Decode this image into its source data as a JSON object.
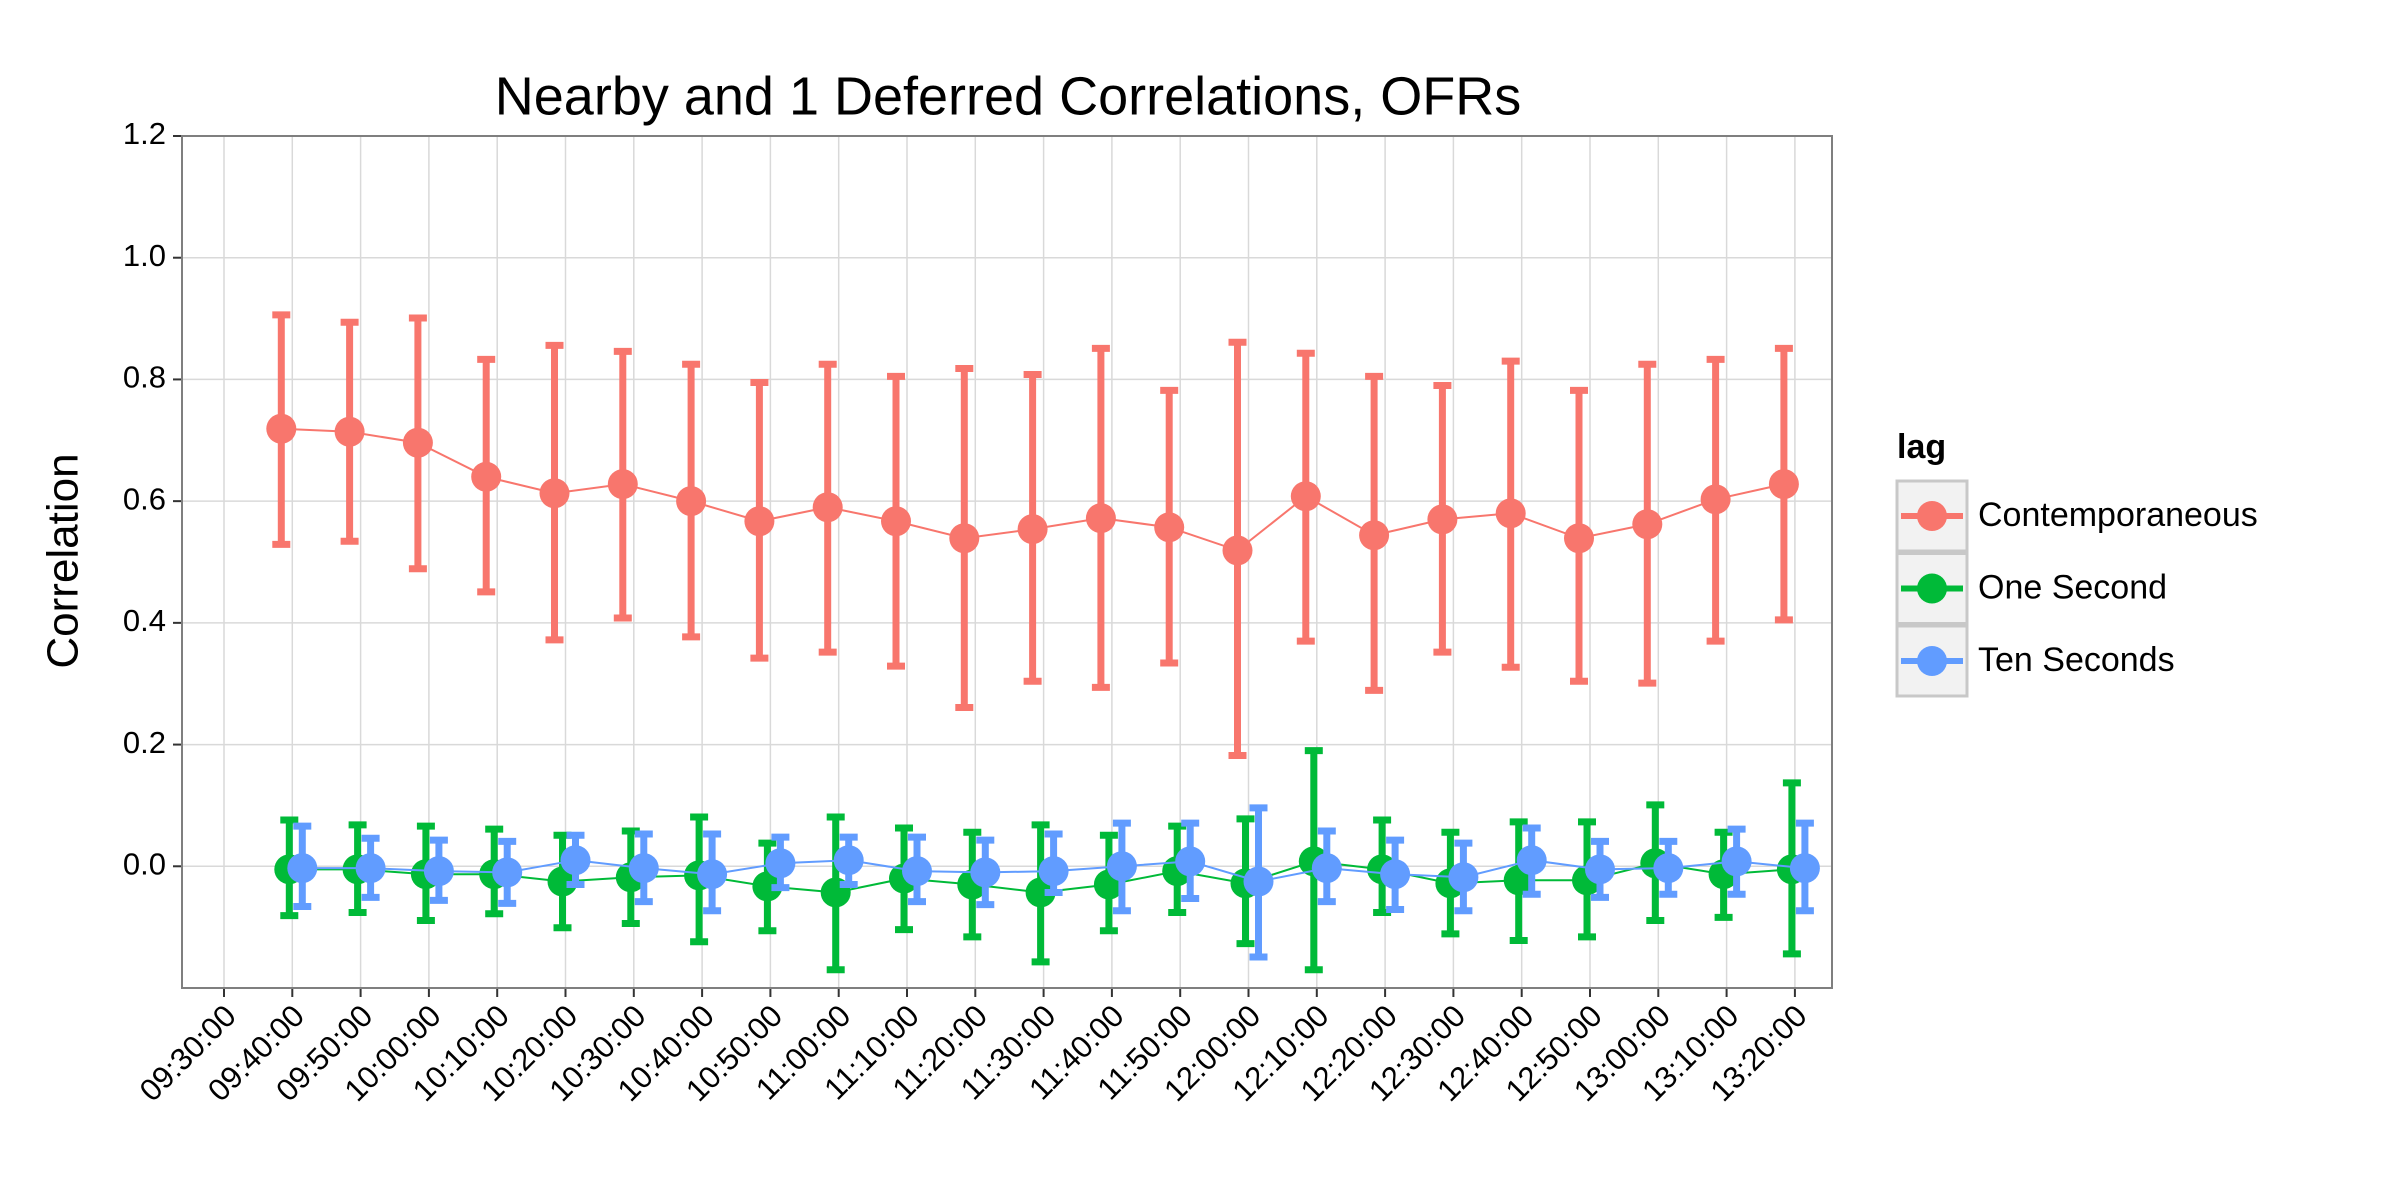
{
  "chart_data": {
    "type": "errorbar_line",
    "title": "Nearby and 1 Deferred Correlations, OFRs",
    "y_label": "Correlation",
    "legend_title": "lag",
    "legend_position": "right",
    "grid": true,
    "categories": [
      "09:30:00",
      "09:40:00",
      "09:50:00",
      "10:00:00",
      "10:10:00",
      "10:20:00",
      "10:30:00",
      "10:40:00",
      "10:50:00",
      "11:00:00",
      "11:10:00",
      "11:20:00",
      "11:30:00",
      "11:40:00",
      "11:50:00",
      "12:00:00",
      "12:10:00",
      "12:20:00",
      "12:30:00",
      "12:40:00",
      "12:50:00",
      "13:00:00",
      "13:10:00",
      "13:20:00"
    ],
    "ylim": [
      -0.2,
      1.2
    ],
    "yticks": [
      {
        "value": 0,
        "label": "0.0"
      },
      0.2,
      0.4,
      0.6,
      0.8,
      {
        "value": 1,
        "label": "1.0"
      },
      1.2
    ],
    "series": [
      {
        "name": "Contemporaneous",
        "color": "#F8766D",
        "values": [
          null,
          0.719,
          0.714,
          0.696,
          0.64,
          0.613,
          0.628,
          0.6,
          0.567,
          0.59,
          0.567,
          0.539,
          0.554,
          0.572,
          0.557,
          0.519,
          0.608,
          0.544,
          0.57,
          0.58,
          0.539,
          0.562,
          0.603,
          0.628
        ],
        "upper": [
          null,
          0.906,
          0.894,
          0.901,
          0.833,
          0.856,
          0.846,
          0.825,
          0.795,
          0.825,
          0.805,
          0.818,
          0.808,
          0.851,
          0.782,
          0.861,
          0.843,
          0.805,
          0.79,
          0.83,
          0.782,
          0.825,
          0.833,
          0.851
        ],
        "lower": [
          null,
          0.529,
          0.534,
          0.489,
          0.451,
          0.372,
          0.408,
          0.377,
          0.342,
          0.352,
          0.329,
          0.261,
          0.304,
          0.294,
          0.334,
          0.182,
          0.37,
          0.289,
          0.352,
          0.327,
          0.304,
          0.301,
          0.37,
          0.405
        ]
      },
      {
        "name": "One Second",
        "color": "#00BA38",
        "values": [
          null,
          -0.005,
          -0.005,
          -0.013,
          -0.013,
          -0.025,
          -0.018,
          -0.015,
          -0.033,
          -0.043,
          -0.02,
          -0.03,
          -0.043,
          -0.03,
          -0.008,
          -0.028,
          0.008,
          -0.005,
          -0.028,
          -0.023,
          -0.023,
          0.005,
          -0.013,
          -0.005
        ],
        "upper": [
          null,
          0.076,
          0.068,
          0.066,
          0.061,
          0.051,
          0.058,
          0.081,
          0.038,
          0.081,
          0.063,
          0.056,
          0.068,
          0.051,
          0.066,
          0.078,
          0.19,
          0.076,
          0.056,
          0.073,
          0.073,
          0.101,
          0.056,
          0.137
        ],
        "lower": [
          null,
          -0.081,
          -0.076,
          -0.089,
          -0.078,
          -0.101,
          -0.094,
          -0.124,
          -0.106,
          -0.17,
          -0.104,
          -0.116,
          -0.157,
          -0.106,
          -0.076,
          -0.127,
          -0.17,
          -0.076,
          -0.111,
          -0.122,
          -0.116,
          -0.089,
          -0.084,
          -0.144
        ]
      },
      {
        "name": "Ten Seconds",
        "color": "#619CFF",
        "values": [
          null,
          -0.003,
          -0.003,
          -0.008,
          -0.01,
          0.01,
          -0.003,
          -0.013,
          0.005,
          0.01,
          -0.008,
          -0.01,
          -0.008,
          0,
          0.008,
          -0.025,
          -0.003,
          -0.013,
          -0.018,
          0.01,
          -0.005,
          -0.003,
          0.008,
          -0.003
        ],
        "upper": [
          null,
          0.066,
          0.046,
          0.043,
          0.041,
          0.051,
          0.053,
          0.053,
          0.048,
          0.048,
          0.048,
          0.043,
          0.053,
          0.071,
          0.071,
          0.096,
          0.058,
          0.043,
          0.038,
          0.063,
          0.041,
          0.041,
          0.061,
          0.071
        ],
        "lower": [
          null,
          -0.066,
          -0.051,
          -0.056,
          -0.061,
          -0.03,
          -0.058,
          -0.073,
          -0.035,
          -0.03,
          -0.058,
          -0.063,
          -0.043,
          -0.073,
          -0.053,
          -0.149,
          -0.058,
          -0.071,
          -0.073,
          -0.046,
          -0.051,
          -0.046,
          -0.046,
          -0.073
        ]
      }
    ]
  }
}
